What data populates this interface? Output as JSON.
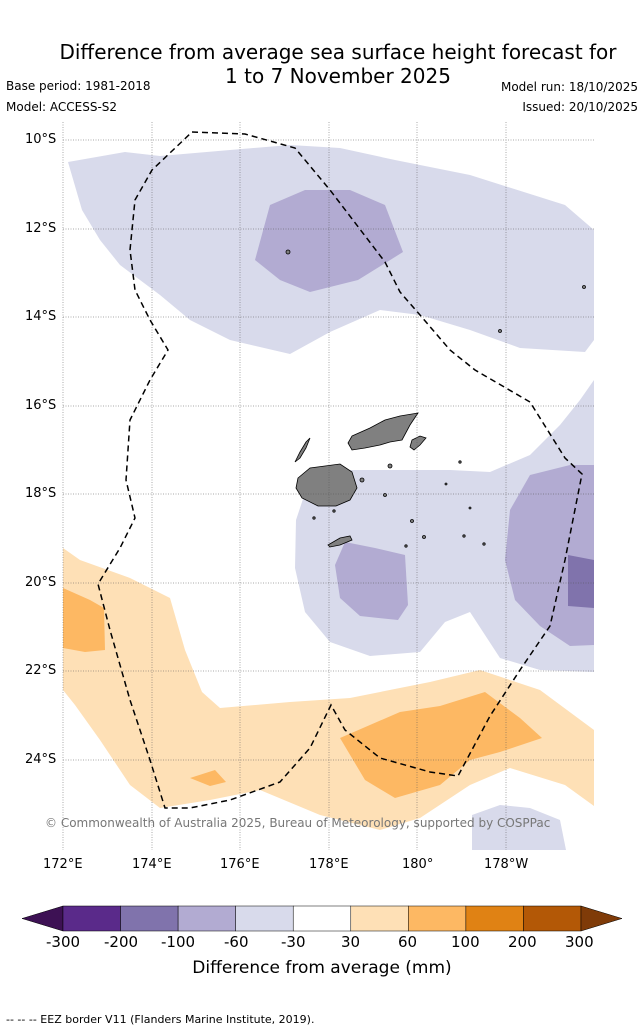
{
  "title_line1": "Difference from average sea surface height forecast for",
  "title_line2": "1 to 7 November 2025",
  "base_period": "Base period: 1981-2018",
  "model": "Model: ACCESS-S2",
  "model_run": "Model run: 18/10/2025",
  "issued": "Issued: 20/10/2025",
  "lat_labels": [
    "10°S",
    "12°S",
    "14°S",
    "16°S",
    "18°S",
    "20°S",
    "22°S",
    "24°S"
  ],
  "lon_labels": [
    "172°E",
    "174°E",
    "176°E",
    "178°E",
    "180°",
    "178°W"
  ],
  "copyright": "© Commonwealth of Australia 2025, Bureau of Meteorology, supported by COSPPac",
  "colorbar": {
    "label": "Difference from average (mm)",
    "ticks": [
      "-300",
      "-200",
      "-100",
      "-60",
      "-30",
      "30",
      "60",
      "100",
      "200",
      "300"
    ],
    "colors": [
      "#3d1154",
      "#5a2a8a",
      "#8073ac",
      "#b2abd2",
      "#d8daeb",
      "#ffffff",
      "#fee0b6",
      "#fdb863",
      "#e08214",
      "#b35806",
      "#7f3b08"
    ]
  },
  "legend_eez": "-- -- -- EEZ border V11 (Flanders Marine Institute, 2019).",
  "colors": {
    "land": "#808080",
    "light_purple": "#d8daeb",
    "mid_purple": "#b2abd2",
    "dark_purple": "#8073ac",
    "light_orange": "#fee0b6",
    "mid_orange": "#fdb863"
  }
}
